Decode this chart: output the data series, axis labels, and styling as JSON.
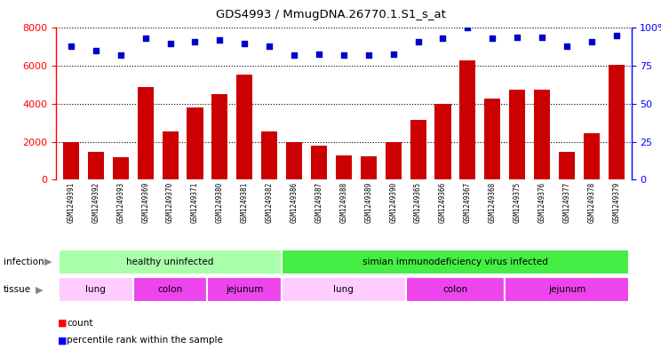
{
  "title": "GDS4993 / MmugDNA.26770.1.S1_s_at",
  "samples": [
    "GSM1249391",
    "GSM1249392",
    "GSM1249393",
    "GSM1249369",
    "GSM1249370",
    "GSM1249371",
    "GSM1249380",
    "GSM1249381",
    "GSM1249382",
    "GSM1249386",
    "GSM1249387",
    "GSM1249388",
    "GSM1249389",
    "GSM1249390",
    "GSM1249365",
    "GSM1249366",
    "GSM1249367",
    "GSM1249368",
    "GSM1249375",
    "GSM1249376",
    "GSM1249377",
    "GSM1249378",
    "GSM1249379"
  ],
  "counts": [
    2000,
    1450,
    1200,
    4900,
    2550,
    3800,
    4500,
    5550,
    2550,
    2000,
    1800,
    1300,
    1250,
    2000,
    3150,
    4000,
    6300,
    4300,
    4750,
    4750,
    1450,
    2450,
    6050
  ],
  "percentiles": [
    88,
    85,
    82,
    93,
    90,
    91,
    92,
    90,
    88,
    82,
    83,
    82,
    82,
    83,
    91,
    93,
    100,
    93,
    94,
    94,
    88,
    91,
    95
  ],
  "bar_color": "#cc0000",
  "dot_color": "#0000cc",
  "left_ylim": [
    0,
    8000
  ],
  "right_ylim": [
    0,
    100
  ],
  "left_yticks": [
    0,
    2000,
    4000,
    6000,
    8000
  ],
  "right_yticks": [
    0,
    25,
    50,
    75,
    100
  ],
  "infection_groups": [
    {
      "label": "healthy uninfected",
      "start": 0,
      "end": 9,
      "color": "#aaffaa"
    },
    {
      "label": "simian immunodeficiency virus infected",
      "start": 9,
      "end": 23,
      "color": "#44ee44"
    }
  ],
  "tissue_groups": [
    {
      "label": "lung",
      "start": 0,
      "end": 3,
      "color": "#ffccff"
    },
    {
      "label": "colon",
      "start": 3,
      "end": 6,
      "color": "#ee44ee"
    },
    {
      "label": "jejunum",
      "start": 6,
      "end": 9,
      "color": "#ee44ee"
    },
    {
      "label": "lung",
      "start": 9,
      "end": 14,
      "color": "#ffccff"
    },
    {
      "label": "colon",
      "start": 14,
      "end": 18,
      "color": "#ee44ee"
    },
    {
      "label": "jejunum",
      "start": 18,
      "end": 23,
      "color": "#ee44ee"
    }
  ],
  "bg_color": "#ffffff",
  "xtick_bg": "#dddddd"
}
